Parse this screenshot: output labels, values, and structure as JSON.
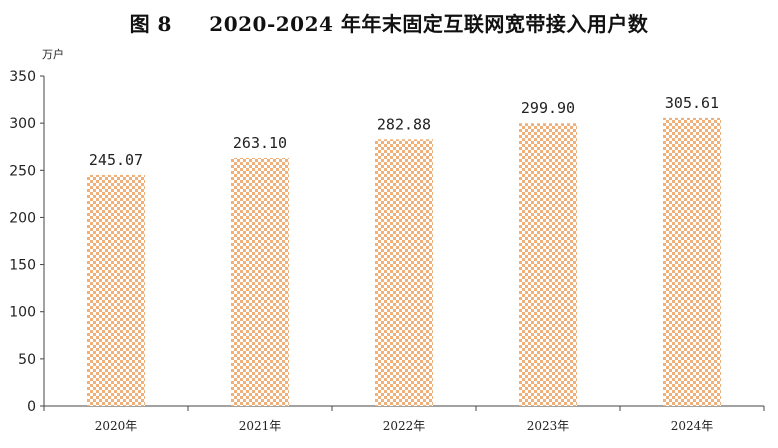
{
  "chart_data": {
    "type": "bar",
    "title": "图 8     2020-2024 年年末固定互联网宽带接入用户数",
    "ylabel": "万户",
    "xlabel": "",
    "categories": [
      "2020年",
      "2021年",
      "2022年",
      "2023年",
      "2024年"
    ],
    "values": [
      245.07,
      263.1,
      282.88,
      299.9,
      305.61
    ],
    "value_labels": [
      "245.07",
      "263.10",
      "282.88",
      "299.90",
      "305.61"
    ],
    "ylim": [
      0,
      350
    ],
    "yticks": [
      "0",
      "50",
      "100",
      "150",
      "200",
      "250",
      "300",
      "350"
    ],
    "grid": false,
    "bar_color": "#f0b07a",
    "bar_pattern": "checkerboard"
  }
}
